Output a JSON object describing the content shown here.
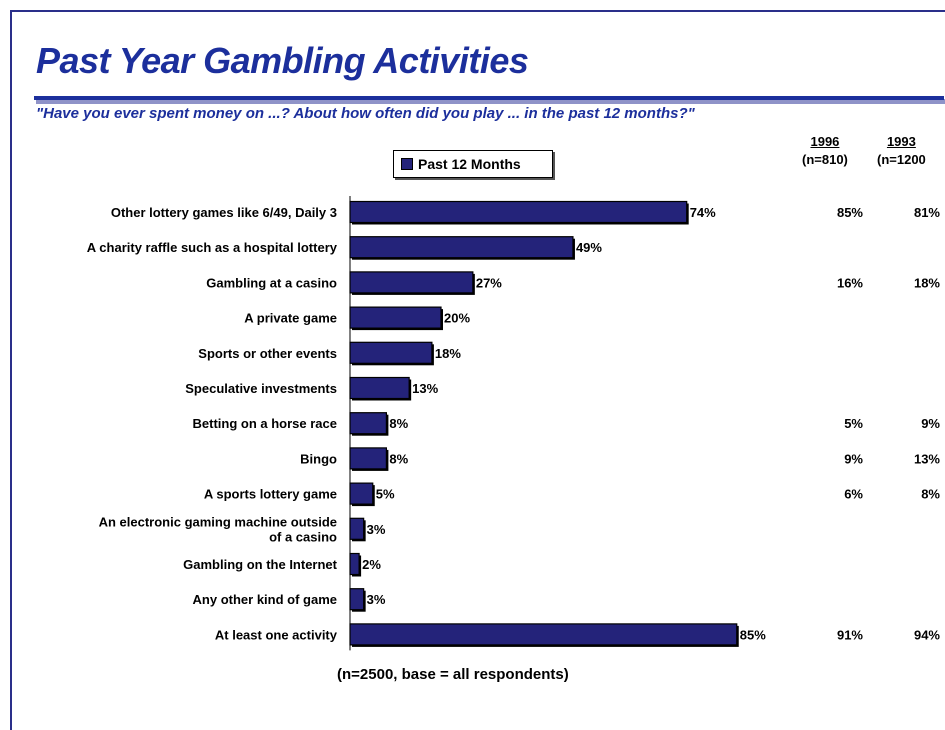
{
  "title": "Past Year Gambling Activities",
  "subtitle": "\"Have you ever spent money on ...? About how often did you play ... in the past 12 months?\"",
  "note": "(n=2500, base = all respondents)",
  "colors": {
    "title": "#1c2f9c",
    "bar": "#24237a",
    "bar_border": "#000000"
  },
  "comparison_columns": [
    {
      "year": "1996",
      "n": "(n=810)"
    },
    {
      "year": "1993",
      "n": "(n=1200"
    }
  ],
  "chart_data": {
    "type": "bar",
    "orientation": "horizontal",
    "title": "Past Year Gambling Activities",
    "legend": {
      "entries": [
        "Past 12 Months"
      ],
      "placement": "top"
    },
    "categories": [
      "Other lottery games like 6/49, Daily 3",
      "A charity raffle such as a hospital lottery",
      "Gambling at a casino",
      "A private game",
      "Sports or other events",
      "Speculative investments",
      "Betting on a horse race",
      "Bingo",
      "A sports lottery game",
      "An electronic gaming machine outside of a casino",
      "Gambling on the Internet",
      "Any other kind of game",
      "At least one activity"
    ],
    "category_lines": [
      [
        "Other lottery games like 6/49, Daily 3"
      ],
      [
        "A charity raffle such as a hospital lottery"
      ],
      [
        "Gambling at a casino"
      ],
      [
        "A private game"
      ],
      [
        "Sports or other events"
      ],
      [
        "Speculative investments"
      ],
      [
        "Betting on a horse race"
      ],
      [
        "Bingo"
      ],
      [
        "A sports lottery game"
      ],
      [
        "An electronic gaming machine outside",
        "of a casino"
      ],
      [
        "Gambling on the Internet"
      ],
      [
        "Any other kind of game"
      ],
      [
        "At least one activity"
      ]
    ],
    "series": [
      {
        "name": "Past 12 Months",
        "values": [
          74,
          49,
          27,
          20,
          18,
          13,
          8,
          8,
          5,
          3,
          2,
          3,
          85
        ]
      }
    ],
    "value_labels": [
      "74%",
      "49%",
      "27%",
      "20%",
      "18%",
      "13%",
      "8%",
      "8%",
      "5%",
      "3%",
      "2%",
      "3%",
      "85%"
    ],
    "comparison": {
      "1996": [
        "85%",
        "",
        "16%",
        "",
        "",
        "",
        "5%",
        "9%",
        "6%",
        "",
        "",
        "",
        "91%"
      ],
      "1993": [
        "81%",
        "",
        "18%",
        "",
        "",
        "",
        "9%",
        "13%",
        "8%",
        "",
        "",
        "",
        "94%"
      ]
    },
    "xlim": [
      0,
      100
    ],
    "grid": false
  }
}
